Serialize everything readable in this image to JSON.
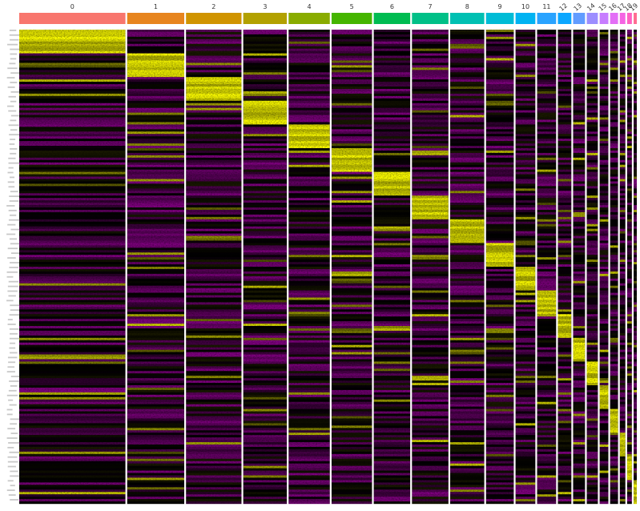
{
  "chart_data": {
    "type": "heatmap",
    "title": "",
    "xlabel": "",
    "ylabel": "",
    "clusters": [
      {
        "label": "0",
        "cells": 134,
        "color": "#F8766D"
      },
      {
        "label": "1",
        "cells": 72,
        "color": "#E7851E"
      },
      {
        "label": "2",
        "cells": 70,
        "color": "#D09400"
      },
      {
        "label": "3",
        "cells": 55,
        "color": "#B2A100"
      },
      {
        "label": "4",
        "cells": 52,
        "color": "#89AC00"
      },
      {
        "label": "5",
        "cells": 51,
        "color": "#45B500"
      },
      {
        "label": "6",
        "cells": 46,
        "color": "#00BC51"
      },
      {
        "label": "7",
        "cells": 46,
        "color": "#00C087"
      },
      {
        "label": "8",
        "cells": 43,
        "color": "#00C0B2"
      },
      {
        "label": "9",
        "cells": 35,
        "color": "#00BCD6"
      },
      {
        "label": "10",
        "cells": 25,
        "color": "#00B3F2"
      },
      {
        "label": "11",
        "cells": 24,
        "color": "#29A3FF"
      },
      {
        "label": "12",
        "cells": 17,
        "color": "#0BA7FF"
      },
      {
        "label": "13",
        "cells": 15,
        "color": "#619CFF"
      },
      {
        "label": "14",
        "cells": 14,
        "color": "#9C8DFF"
      },
      {
        "label": "15",
        "cells": 11,
        "color": "#C77CFF"
      },
      {
        "label": "16",
        "cells": 10,
        "color": "#E36EF6"
      },
      {
        "label": "17",
        "cells": 7,
        "color": "#F564E3"
      },
      {
        "label": "18",
        "cells": 6,
        "color": "#FF61C3"
      },
      {
        "label": "19",
        "cells": 4,
        "color": "#FF6C91"
      }
    ],
    "genes_per_cluster": 10,
    "color_scale": {
      "low": "#FF00FF",
      "mid": "#000000",
      "high": "#FFFF00"
    },
    "legend": "none",
    "grid": false
  }
}
